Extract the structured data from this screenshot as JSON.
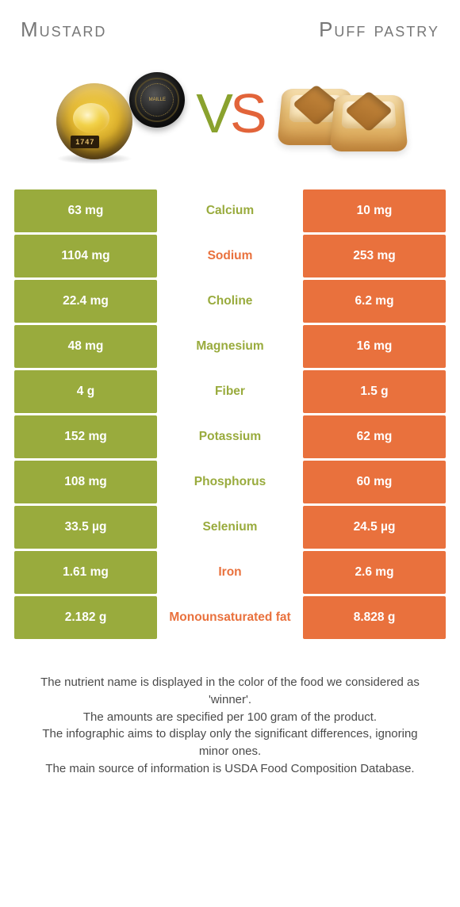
{
  "colors": {
    "left_bg": "#99ab3d",
    "right_bg": "#e9713d",
    "left_text": "#99ab3d",
    "right_text": "#e9713d"
  },
  "header": {
    "left_title": "Mustard",
    "right_title": "Puff pastry",
    "vs_v": "V",
    "vs_s": "S",
    "jar_label": "1747",
    "lid_text": "MAILLE"
  },
  "rows": [
    {
      "left": "63 mg",
      "name": "Calcium",
      "right": "10 mg",
      "winner": "left"
    },
    {
      "left": "1104 mg",
      "name": "Sodium",
      "right": "253 mg",
      "winner": "right"
    },
    {
      "left": "22.4 mg",
      "name": "Choline",
      "right": "6.2 mg",
      "winner": "left"
    },
    {
      "left": "48 mg",
      "name": "Magnesium",
      "right": "16 mg",
      "winner": "left"
    },
    {
      "left": "4 g",
      "name": "Fiber",
      "right": "1.5 g",
      "winner": "left"
    },
    {
      "left": "152 mg",
      "name": "Potassium",
      "right": "62 mg",
      "winner": "left"
    },
    {
      "left": "108 mg",
      "name": "Phosphorus",
      "right": "60 mg",
      "winner": "left"
    },
    {
      "left": "33.5 µg",
      "name": "Selenium",
      "right": "24.5 µg",
      "winner": "left"
    },
    {
      "left": "1.61 mg",
      "name": "Iron",
      "right": "2.6 mg",
      "winner": "right"
    },
    {
      "left": "2.182 g",
      "name": "Monounsaturated fat",
      "right": "8.828 g",
      "winner": "right"
    }
  ],
  "footer": {
    "line1": "The nutrient name is displayed in the color of the food we considered as 'winner'.",
    "line2": "The amounts are specified per 100 gram of the product.",
    "line3": "The infographic aims to display only the significant differences, ignoring minor ones.",
    "line4": "The main source of information is USDA Food Composition Database."
  }
}
